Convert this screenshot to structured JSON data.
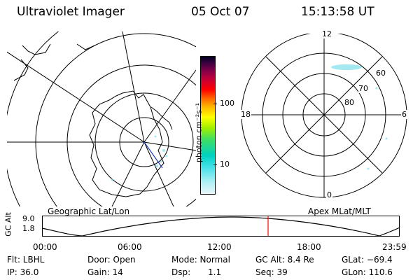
{
  "header": {
    "instrument": "Ultraviolet Imager",
    "date": "05 Oct 07",
    "time": "15:13:58 UT"
  },
  "colors": {
    "aurora": "#7ce0e8",
    "cursor": "#ff0000",
    "colorbar_stops": [
      "#e8f6f8",
      "#b4f0f4",
      "#40e0e8",
      "#00d0c0",
      "#40e060",
      "#a0f000",
      "#ffff00",
      "#ffb000",
      "#ff6000",
      "#ff0000",
      "#c0003a",
      "#80004a",
      "#400040",
      "#000020"
    ]
  },
  "left_panel": {
    "label": "Geographic Lat/Lon"
  },
  "colorbar": {
    "unit_label": "photon cm⁻²s⁻¹",
    "ticks": [
      "100",
      "10"
    ]
  },
  "right_panel": {
    "label": "Apex MLat/MLT",
    "mlt_labels": {
      "top": "12",
      "right": "6",
      "bottom": "0",
      "left": "18"
    },
    "lat_labels": [
      "60",
      "70",
      "80"
    ]
  },
  "timeline": {
    "ylabel": "GC Alt",
    "yticks": [
      "9.0",
      "1.8"
    ],
    "xticks": [
      "00:00",
      "06:00",
      "12:00",
      "18:00",
      "23:59"
    ],
    "cursor_time": "15:13:58"
  },
  "info": {
    "filter": "Flt: LBHL",
    "door": "Door: Open",
    "mode": "Mode: Normal",
    "gc_alt": "GC Alt: 8.4 Re",
    "glat": "GLat: −69.4",
    "ip": "IP: 36.0",
    "gain": "Gain: 14",
    "dsp_label": "Dsp:",
    "dsp_value": "1.1",
    "seq": "Seq: 39",
    "glon": "GLon: 110.6"
  }
}
